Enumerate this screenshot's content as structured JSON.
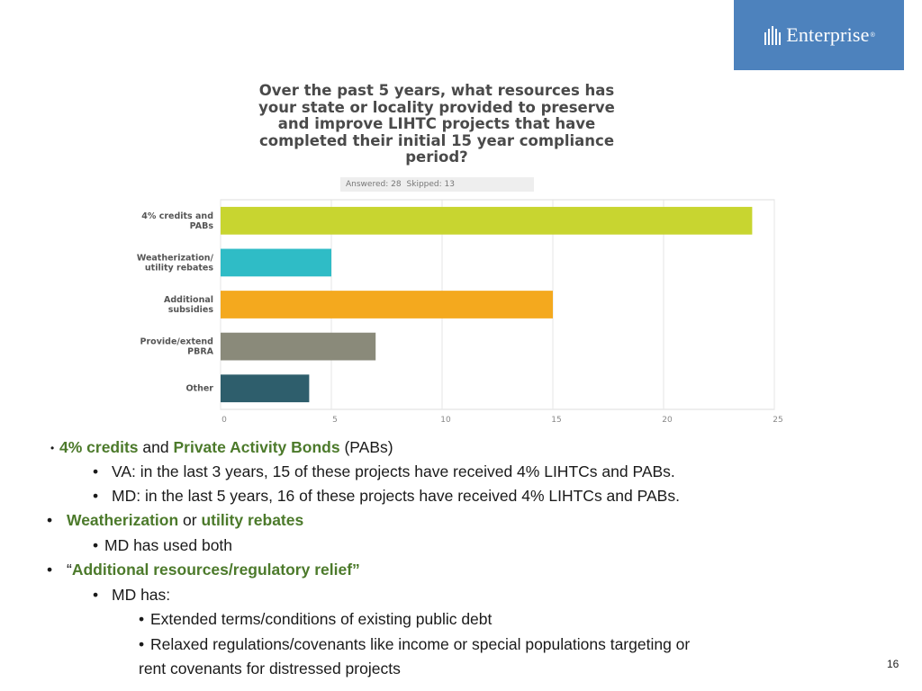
{
  "logo": {
    "text": "Enterprise",
    "mark": "enterprise-logo-mark"
  },
  "chart_data": {
    "type": "bar",
    "orientation": "horizontal",
    "title": "Over the past 5 years, what resources has\nyour state or locality provided to preserve\nand improve LIHTC projects that have\ncompleted their initial 15 year compliance\nperiod?",
    "subtitle_answered": "Answered: 28",
    "subtitle_skipped": "Skipped: 13",
    "categories": [
      "4% credits and\nPABs",
      "Weatherization/\nutility rebates",
      "Additional\nsubsidies",
      "Provide/extend\nPBRA",
      "Other"
    ],
    "values": [
      24,
      5,
      15,
      7,
      4
    ],
    "colors": [
      "#c8d530",
      "#2fbcc6",
      "#f4a91e",
      "#8a8a7a",
      "#2e5e6c"
    ],
    "xlim": [
      0,
      25
    ],
    "xticks": [
      0,
      5,
      10,
      15,
      20,
      25
    ],
    "grid": true
  },
  "bullets": {
    "b1": {
      "part1": "4% credits",
      "and": " and ",
      "part2": "Private Activity Bonds",
      "tail": " (PABs)"
    },
    "b1a": "VA: in the last 3 years, 15 of these projects have received 4% LIHTCs and PABs.",
    "b1b": "MD: in the last 5 years, 16 of these projects have received 4% LIHTCs and PABs.",
    "b2": {
      "part1": "Weatherization",
      "or": " or ",
      "part2": "utility rebates"
    },
    "b2a": "MD has used both",
    "b3": {
      "open_quote": "“",
      "text": "Additional resources/regulatory relief”"
    },
    "b3a": "MD has:",
    "b3a1": "Extended terms/conditions of existing public debt",
    "b3a2_line1": "Relaxed regulations/covenants like income or special populations targeting or",
    "b3a2_line2": "rent covenants for distressed projects",
    "bullet_glyph": "•"
  },
  "page_number": "16"
}
